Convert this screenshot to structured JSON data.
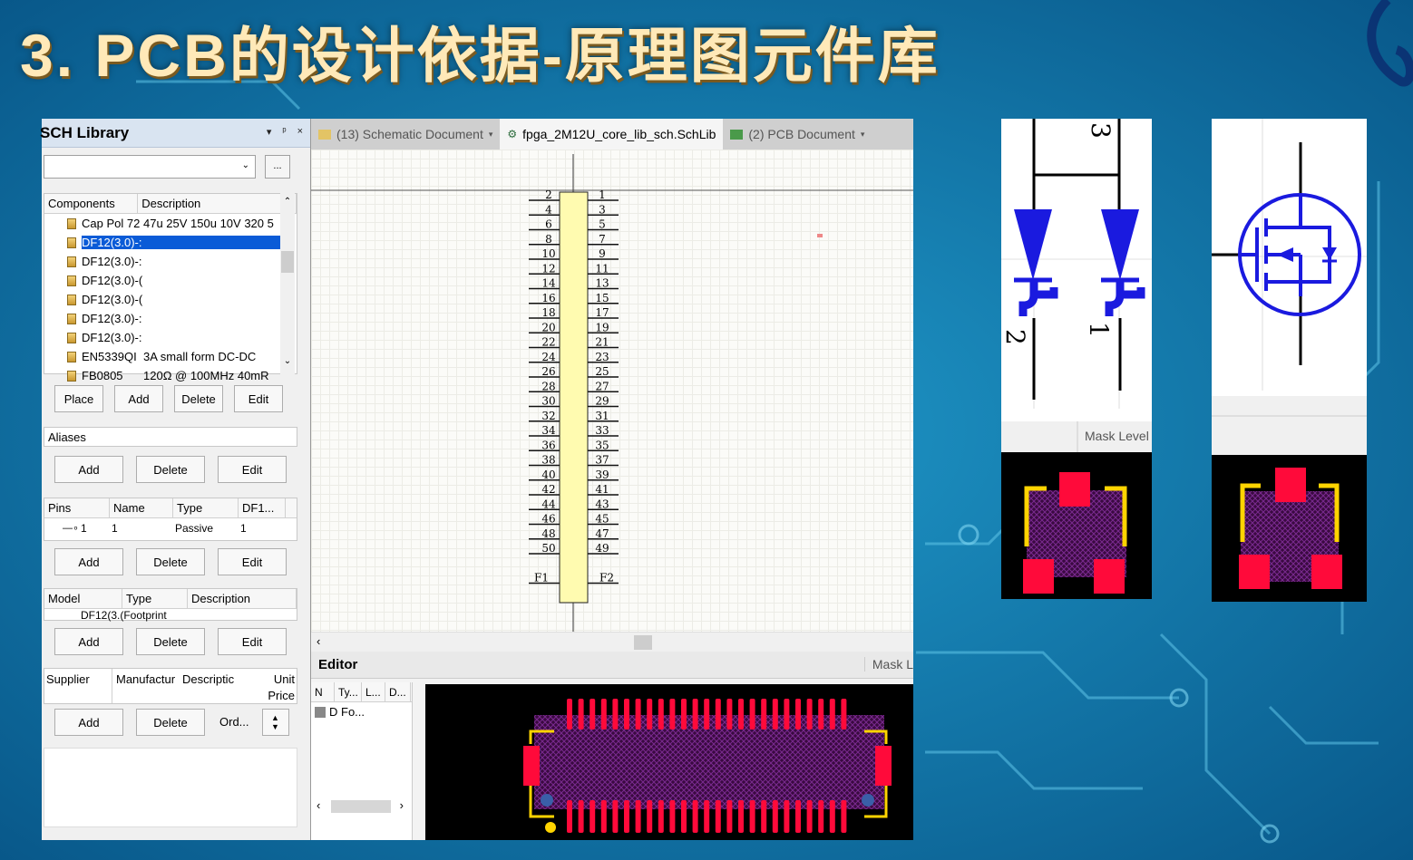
{
  "slide": {
    "title": "3. PCB的设计依据-原理图元件库"
  },
  "colors": {
    "accent_blue": "#0a5bd7",
    "pcb_pad_red": "#ff0a3a",
    "pcb_overlay_yellow": "#ffd400",
    "body_fill": "#fffbb0",
    "symbol_blue": "#1a1adf"
  },
  "sch_library": {
    "title": "SCH Library",
    "win_buttons": [
      "▾",
      "ᵖ",
      "×"
    ],
    "filter_value": "",
    "filter_button": "...",
    "components": {
      "headers": [
        "Components",
        "Description"
      ],
      "rows": [
        {
          "name": "Cap Pol 72",
          "description": "47u 25V 150u 10V 320 5"
        },
        {
          "name": "DF12(3.0)-:",
          "description": "",
          "selected": true
        },
        {
          "name": "DF12(3.0)-:",
          "description": ""
        },
        {
          "name": "DF12(3.0)-(",
          "description": ""
        },
        {
          "name": "DF12(3.0)-(",
          "description": ""
        },
        {
          "name": "DF12(3.0)-:",
          "description": ""
        },
        {
          "name": "DF12(3.0)-:",
          "description": ""
        },
        {
          "name": "EN5339QI",
          "description": "3A small form DC-DC"
        },
        {
          "name": "FB0805",
          "description": "120Ω @ 100MHz 40mR"
        }
      ]
    },
    "component_buttons": [
      "Place",
      "Add",
      "Delete",
      "Edit"
    ],
    "aliases": {
      "header": "Aliases",
      "buttons": [
        "Add",
        "Delete",
        "Edit"
      ]
    },
    "pins": {
      "headers": [
        "Pins",
        "Name",
        "Type",
        "DF1..."
      ],
      "rows": [
        {
          "pin": "1",
          "name": "1",
          "type": "Passive",
          "df": "1"
        }
      ],
      "buttons": [
        "Add",
        "Delete",
        "Edit"
      ]
    },
    "model": {
      "headers": [
        "Model",
        "Type",
        "Description"
      ],
      "rows": [
        {
          "model": "DF12(3.(",
          "type": "Footprint"
        }
      ],
      "buttons": [
        "Add",
        "Delete",
        "Edit"
      ]
    },
    "supplier": {
      "headers": [
        "Supplier",
        "Manufactur",
        "Descriptic",
        "Unit Price"
      ],
      "unit_label": "Unit",
      "price_label": "Price",
      "buttons": [
        "Add",
        "Delete"
      ],
      "order_label": "Ord..."
    }
  },
  "editor": {
    "tabs": [
      {
        "label": "(13) Schematic Document",
        "active": false
      },
      {
        "label": "fpga_2M12U_core_lib_sch.SchLib",
        "active": true
      },
      {
        "label": "(2) PCB Document",
        "active": false
      }
    ],
    "connector": {
      "left_pins": [
        "2",
        "4",
        "6",
        "8",
        "10",
        "12",
        "14",
        "16",
        "18",
        "20",
        "22",
        "24",
        "26",
        "28",
        "30",
        "32",
        "34",
        "36",
        "38",
        "40",
        "42",
        "44",
        "46",
        "48",
        "50"
      ],
      "right_pins": [
        "1",
        "3",
        "5",
        "7",
        "9",
        "11",
        "13",
        "15",
        "17",
        "19",
        "21",
        "23",
        "25",
        "27",
        "29",
        "31",
        "33",
        "35",
        "37",
        "39",
        "41",
        "43",
        "45",
        "47",
        "49"
      ],
      "left_extra": "F1",
      "right_extra": "F2",
      "pads_per_row": 25
    },
    "bottom": {
      "editor_label": "Editor",
      "mask_label": "Mask L",
      "model_headers": [
        "N",
        "Ty...",
        "L...",
        "D..."
      ],
      "model_row": "D Fo..."
    }
  },
  "right_examples": {
    "diode_pins": [
      "3",
      "2",
      "1"
    ],
    "mask_level_label": "Mask Level"
  }
}
